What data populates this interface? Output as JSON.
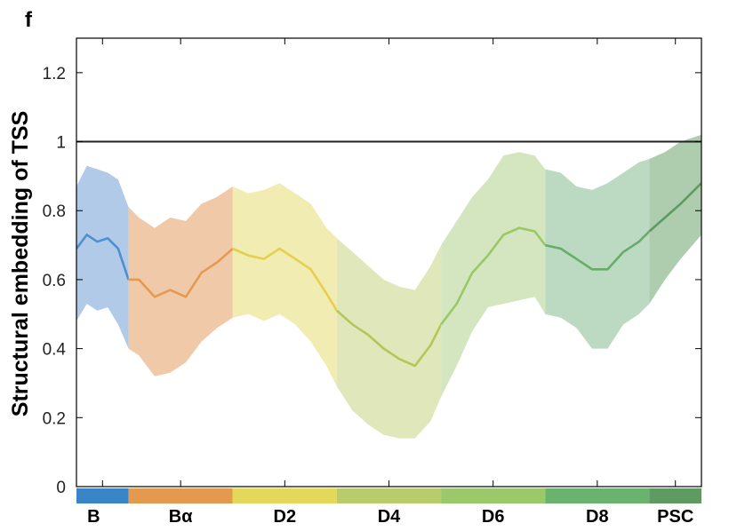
{
  "panel_letter": "f",
  "chart_data": {
    "type": "line",
    "title": "",
    "xlabel": "",
    "ylabel": "Structural embedding of TSS",
    "ylim": [
      0,
      1.3
    ],
    "yticks": [
      0,
      0.2,
      0.4,
      0.6,
      0.8,
      1,
      1.2
    ],
    "ytick_labels": [
      "0",
      "0.2",
      "0.4",
      "0.6",
      "0.8",
      "1",
      "1.2"
    ],
    "reference_line": {
      "y": 1,
      "color": "#222222"
    },
    "x_range": [
      0,
      6
    ],
    "stages": [
      {
        "label": "B",
        "x_start": 0,
        "x_end": 0.5,
        "color": "#3a84c8",
        "band_color": "#a7c4e6",
        "line_color": "#4d8fd0"
      },
      {
        "label": "Bα",
        "x_start": 0.5,
        "x_end": 1.5,
        "color": "#e39a4f",
        "band_color": "#eec49f",
        "line_color": "#e59a50"
      },
      {
        "label": "D2",
        "x_start": 1.5,
        "x_end": 2.5,
        "color": "#e4d85a",
        "band_color": "#efeaa8",
        "line_color": "#e6cf4a"
      },
      {
        "label": "D4",
        "x_start": 2.5,
        "x_end": 3.5,
        "color": "#b9cc6c",
        "band_color": "#dde5b4",
        "line_color": "#b5c658"
      },
      {
        "label": "D6",
        "x_start": 3.5,
        "x_end": 4.5,
        "color": "#9ac86a",
        "band_color": "#cfe3b9",
        "line_color": "#9bc866"
      },
      {
        "label": "D8",
        "x_start": 4.5,
        "x_end": 5.5,
        "color": "#6ab36e",
        "band_color": "#b5d6ba",
        "line_color": "#66ad69"
      },
      {
        "label": "PSC",
        "x_start": 5.5,
        "x_end": 6,
        "color": "#5e9a62",
        "band_color": "#a5c6a5",
        "line_color": "#5f9a63"
      }
    ],
    "series": [
      {
        "x": [
          0,
          0.1,
          0.2,
          0.3,
          0.4,
          0.5,
          0.6,
          0.75,
          0.9,
          1.05,
          1.2,
          1.35,
          1.5,
          1.65,
          1.8,
          1.95,
          2.1,
          2.25,
          2.4,
          2.5,
          2.65,
          2.8,
          2.95,
          3.1,
          3.25,
          3.4,
          3.5,
          3.65,
          3.8,
          3.95,
          4.1,
          4.25,
          4.4,
          4.5,
          4.65,
          4.8,
          4.95,
          5.1,
          5.25,
          5.4,
          5.5,
          5.65,
          5.8,
          6
        ],
        "y": [
          0.69,
          0.73,
          0.71,
          0.72,
          0.69,
          0.6,
          0.6,
          0.55,
          0.57,
          0.55,
          0.62,
          0.65,
          0.69,
          0.67,
          0.66,
          0.69,
          0.66,
          0.63,
          0.56,
          0.51,
          0.47,
          0.44,
          0.4,
          0.37,
          0.35,
          0.41,
          0.47,
          0.53,
          0.62,
          0.67,
          0.73,
          0.75,
          0.74,
          0.7,
          0.69,
          0.66,
          0.63,
          0.63,
          0.68,
          0.71,
          0.74,
          0.78,
          0.82,
          0.88
        ],
        "lower": [
          0.48,
          0.53,
          0.51,
          0.52,
          0.47,
          0.4,
          0.38,
          0.32,
          0.33,
          0.36,
          0.42,
          0.46,
          0.49,
          0.5,
          0.48,
          0.5,
          0.47,
          0.42,
          0.35,
          0.29,
          0.22,
          0.18,
          0.15,
          0.14,
          0.14,
          0.19,
          0.26,
          0.35,
          0.45,
          0.52,
          0.53,
          0.54,
          0.55,
          0.5,
          0.49,
          0.46,
          0.4,
          0.4,
          0.47,
          0.5,
          0.53,
          0.6,
          0.66,
          0.73
        ],
        "upper": [
          0.87,
          0.93,
          0.92,
          0.91,
          0.89,
          0.81,
          0.78,
          0.75,
          0.78,
          0.77,
          0.82,
          0.84,
          0.87,
          0.85,
          0.86,
          0.88,
          0.85,
          0.82,
          0.75,
          0.72,
          0.68,
          0.64,
          0.6,
          0.58,
          0.57,
          0.64,
          0.7,
          0.77,
          0.84,
          0.89,
          0.96,
          0.97,
          0.96,
          0.92,
          0.91,
          0.87,
          0.86,
          0.88,
          0.91,
          0.94,
          0.95,
          0.97,
          1.0,
          1.02
        ]
      }
    ],
    "grid": false,
    "legend": "none"
  }
}
